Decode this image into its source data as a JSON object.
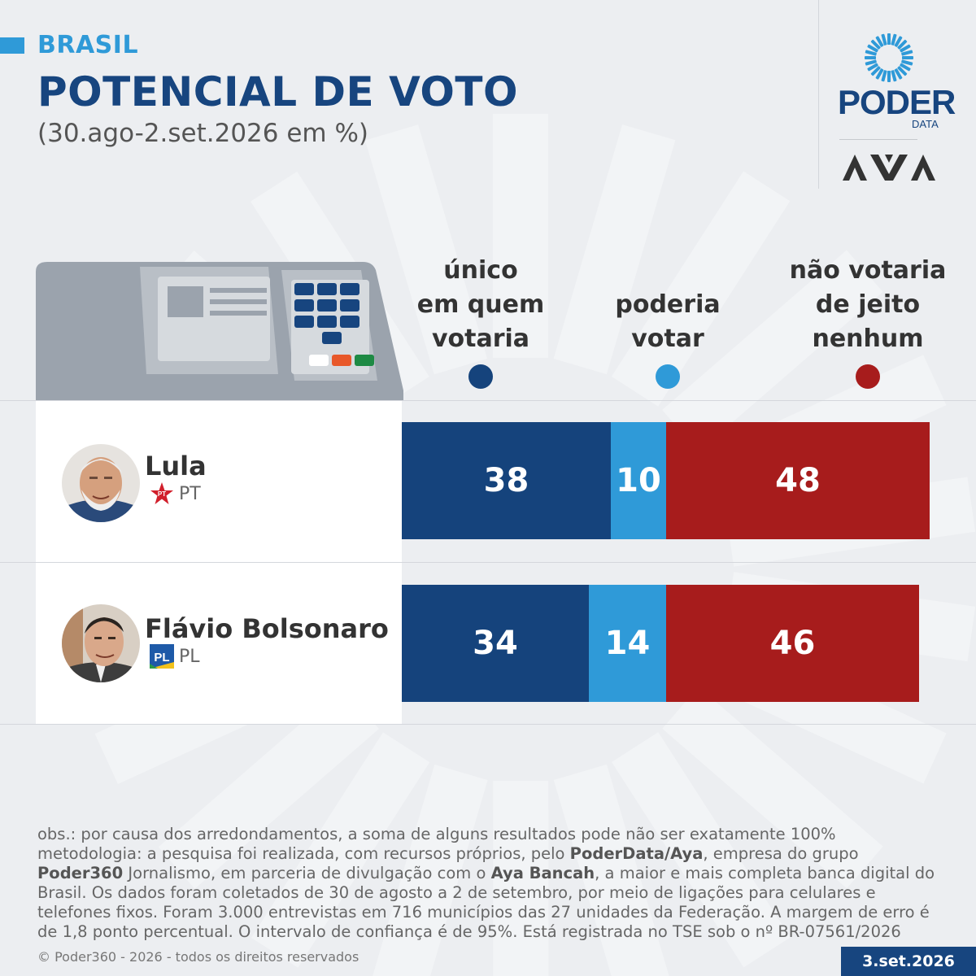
{
  "header": {
    "kicker": "BRASIL",
    "title": "POTENCIAL DE VOTO",
    "subtitle": "(30.ago-2.set.2026 em %)"
  },
  "logos": {
    "poder_word": "PODER",
    "poder_sub": "DATA",
    "aya_icon": "aya-logo-icon",
    "sun_icon": "sun-logo-icon"
  },
  "chart_data": {
    "type": "bar",
    "orientation": "horizontal",
    "stacked": true,
    "xlim": [
      0,
      100
    ],
    "categories": [
      "Lula",
      "Flávio Bolsonaro"
    ],
    "series": [
      {
        "name": "único em quem votaria",
        "color": "#15437c",
        "values": [
          38,
          34
        ]
      },
      {
        "name": "poderia votar",
        "color": "#2f9ad8",
        "values": [
          10,
          14
        ]
      },
      {
        "name": "não votaria de jeito nenhum",
        "color": "#a71c1c",
        "values": [
          48,
          46
        ]
      }
    ],
    "legend": {
      "placement": "top",
      "labels": [
        [
          "único",
          "em quem",
          "votaria"
        ],
        [
          "poderia",
          "votar"
        ],
        [
          "não votaria",
          "de jeito",
          "nenhum"
        ]
      ]
    }
  },
  "candidates": [
    {
      "name": "Lula",
      "party": "PT",
      "party_icon": "pt-star-icon"
    },
    {
      "name": "Flávio Bolsonaro",
      "party": "PL",
      "party_icon": "pl-logo-icon"
    }
  ],
  "footer": {
    "obs": "obs.: por causa dos arredondamentos, a soma de alguns resultados pode não ser exatamente 100%",
    "method_1": "metodologia: a pesquisa foi realizada, com recursos próprios, pelo ",
    "method_2": "PoderData/Aya",
    "method_3": ", empresa do grupo ",
    "method_4": "Poder360",
    "method_5": " Jornalismo, em parceria de divulgação com o ",
    "method_6": "Aya Bancah",
    "method_7": ", a maior e mais completa banca digital do Brasil. Os dados foram coletados de 30 de agosto a 2 de setembro, por meio de ligações para celulares e telefones fixos. Foram 3.000 entrevistas em 716 municípios das 27 unidades da Federação. A margem de erro é de 1,8 ponto percentual. O intervalo de confiança é de 95%. Está registrada no TSE sob o nº BR-07561/2026",
    "copyright": "© Poder360 - 2026 - todos os direitos reservados",
    "date": "3.set.2026"
  }
}
